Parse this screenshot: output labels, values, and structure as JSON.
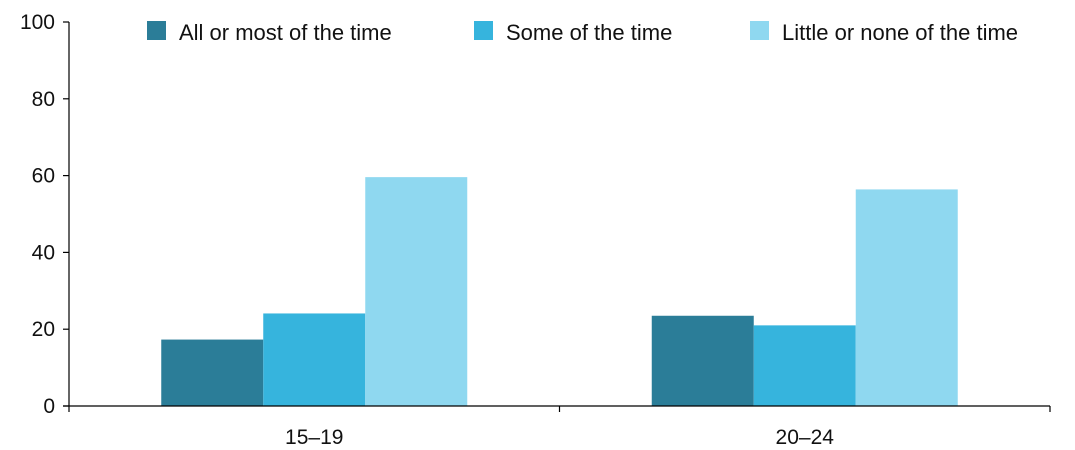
{
  "chart_data": {
    "type": "bar",
    "categories": [
      "15–19",
      "20–24"
    ],
    "series": [
      {
        "name": "All or most of the time",
        "values": [
          17.3,
          23.5
        ],
        "color": "#2b7d98"
      },
      {
        "name": "Some of the time",
        "values": [
          24.1,
          21.0
        ],
        "color": "#36b4dd"
      },
      {
        "name": "Little or none of the time",
        "values": [
          59.6,
          56.4
        ],
        "color": "#8fd8f0"
      }
    ],
    "y_ticks": [
      "0",
      "20",
      "40",
      "60",
      "80",
      "100"
    ],
    "ylim": [
      0,
      100
    ],
    "title": "",
    "xlabel": "",
    "ylabel": "",
    "grid": false,
    "legend_position": "top-right"
  }
}
